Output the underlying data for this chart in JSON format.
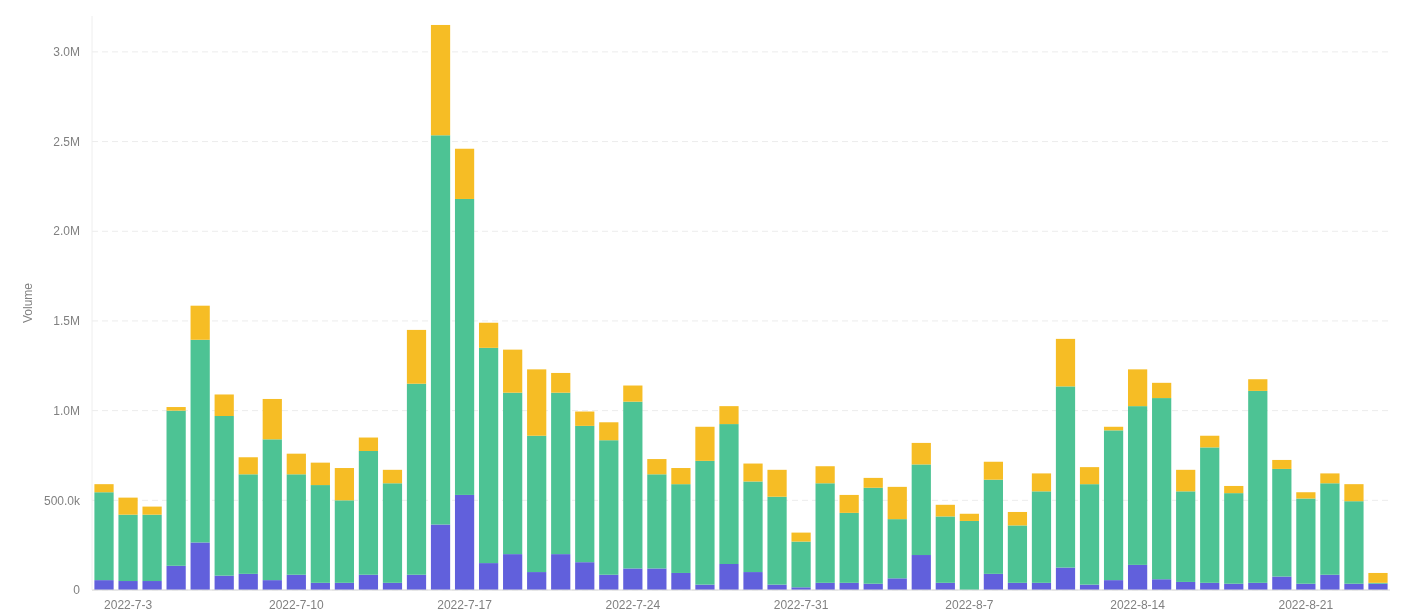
{
  "chart_data": {
    "type": "bar",
    "stacked": true,
    "ylabel": "Volume",
    "x": [
      "2022-07-02",
      "2022-07-03",
      "2022-07-04",
      "2022-07-05",
      "2022-07-06",
      "2022-07-07",
      "2022-07-08",
      "2022-07-09",
      "2022-07-10",
      "2022-07-11",
      "2022-07-12",
      "2022-07-13",
      "2022-07-14",
      "2022-07-15",
      "2022-07-16",
      "2022-07-17",
      "2022-07-18",
      "2022-07-19",
      "2022-07-20",
      "2022-07-21",
      "2022-07-22",
      "2022-07-23",
      "2022-07-24",
      "2022-07-25",
      "2022-07-26",
      "2022-07-27",
      "2022-07-28",
      "2022-07-29",
      "2022-07-30",
      "2022-07-31",
      "2022-08-01",
      "2022-08-02",
      "2022-08-03",
      "2022-08-04",
      "2022-08-05",
      "2022-08-06",
      "2022-08-07",
      "2022-08-08",
      "2022-08-09",
      "2022-08-10",
      "2022-08-11",
      "2022-08-12",
      "2022-08-13",
      "2022-08-14",
      "2022-08-15",
      "2022-08-16",
      "2022-08-17",
      "2022-08-18",
      "2022-08-19",
      "2022-08-20",
      "2022-08-21",
      "2022-08-22",
      "2022-08-23",
      "2022-08-24"
    ],
    "series": [
      {
        "color": "#6160dc",
        "values": [
          55000,
          50000,
          50000,
          135000,
          265000,
          80000,
          90000,
          55000,
          85000,
          40000,
          40000,
          85000,
          40000,
          85000,
          365000,
          530000,
          150000,
          200000,
          100000,
          200000,
          155000,
          85000,
          120000,
          120000,
          95000,
          30000,
          145000,
          100000,
          30000,
          15000,
          40000,
          40000,
          35000,
          65000,
          195000,
          40000,
          0,
          90000,
          40000,
          40000,
          125000,
          30000,
          55000,
          140000,
          60000,
          45000,
          40000,
          35000,
          40000,
          75000,
          35000,
          85000,
          35000,
          35000
        ]
      },
      {
        "color": "#4dc394",
        "values": [
          490000,
          370000,
          370000,
          865000,
          1130000,
          890000,
          555000,
          785000,
          560000,
          545000,
          460000,
          690000,
          555000,
          1065000,
          2170000,
          1650000,
          1200000,
          900000,
          760000,
          900000,
          760000,
          750000,
          930000,
          525000,
          495000,
          690000,
          780000,
          505000,
          490000,
          255000,
          555000,
          390000,
          535000,
          330000,
          505000,
          370000,
          385000,
          525000,
          320000,
          510000,
          1010000,
          560000,
          835000,
          885000,
          1010000,
          505000,
          755000,
          505000,
          1070000,
          600000,
          475000,
          510000,
          460000,
          5000
        ]
      },
      {
        "color": "#f6bd25",
        "values": [
          45000,
          95000,
          45000,
          20000,
          190000,
          120000,
          95000,
          225000,
          115000,
          125000,
          180000,
          75000,
          75000,
          300000,
          615000,
          280000,
          140000,
          240000,
          370000,
          110000,
          80000,
          100000,
          90000,
          85000,
          90000,
          190000,
          100000,
          100000,
          150000,
          50000,
          95000,
          100000,
          55000,
          180000,
          120000,
          65000,
          40000,
          100000,
          75000,
          100000,
          265000,
          95000,
          20000,
          205000,
          85000,
          120000,
          65000,
          40000,
          65000,
          50000,
          35000,
          55000,
          95000,
          55000
        ]
      }
    ],
    "xlim": [
      "2022-07-01T12:00",
      "2022-08-24T12:00"
    ],
    "xticks": [
      {
        "value": "2022-07-03",
        "label": "2022-7-3"
      },
      {
        "value": "2022-07-10",
        "label": "2022-7-10"
      },
      {
        "value": "2022-07-17",
        "label": "2022-7-17"
      },
      {
        "value": "2022-07-24",
        "label": "2022-7-24"
      },
      {
        "value": "2022-07-31",
        "label": "2022-7-31"
      },
      {
        "value": "2022-08-07",
        "label": "2022-8-7"
      },
      {
        "value": "2022-08-14",
        "label": "2022-8-14"
      },
      {
        "value": "2022-08-21",
        "label": "2022-8-21"
      }
    ],
    "ylim": [
      0,
      3200000
    ],
    "yticks": [
      0,
      {
        "value": 500000,
        "label": "500.0k"
      },
      {
        "value": 1000000,
        "label": "1.0M"
      },
      {
        "value": 1500000,
        "label": "1.5M"
      },
      {
        "value": 2000000,
        "label": "2.0M"
      },
      {
        "value": 2500000,
        "label": "2.5M"
      },
      {
        "value": 3000000,
        "label": "3.0M"
      }
    ],
    "grid": "y"
  }
}
